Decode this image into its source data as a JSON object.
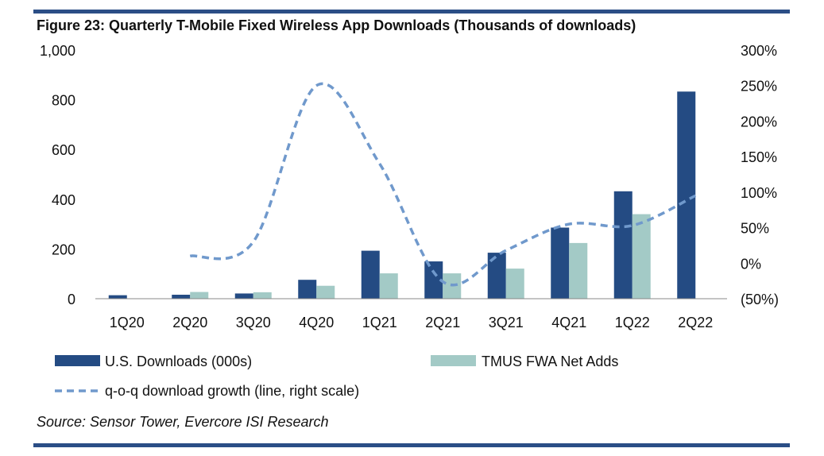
{
  "title": "Figure 23: Quarterly T-Mobile Fixed Wireless App Downloads (Thousands of downloads)",
  "source": "Source: Sensor Tower, Evercore ISI Research",
  "colors": {
    "rule": "#2b4e86",
    "downloads": "#244b83",
    "net_adds": "#a3cac6",
    "growth": "#7099cc",
    "axis": "#888888"
  },
  "chart_data": {
    "type": "bar",
    "title": "Figure 23: Quarterly T-Mobile Fixed Wireless App Downloads (Thousands of downloads)",
    "categories": [
      "1Q20",
      "2Q20",
      "3Q20",
      "4Q20",
      "1Q21",
      "2Q21",
      "3Q21",
      "4Q21",
      "1Q22",
      "2Q22"
    ],
    "series": [
      {
        "name": "U.S. Downloads (000s)",
        "type": "bar",
        "axis": "left",
        "values": [
          14,
          16,
          21,
          76,
          193,
          150,
          185,
          286,
          432,
          833
        ]
      },
      {
        "name": "TMUS FWA Net Adds",
        "type": "bar",
        "axis": "left",
        "values": [
          null,
          27,
          26,
          52,
          102,
          102,
          121,
          224,
          340,
          null
        ]
      },
      {
        "name": "q-o-q download growth (line, right scale)",
        "type": "line",
        "style": "dashed",
        "axis": "right",
        "values": [
          null,
          10,
          30,
          250,
          140,
          -26,
          18,
          55,
          53,
          95
        ]
      }
    ],
    "y_left": {
      "min": 0,
      "max": 1000,
      "ticks": [
        0,
        200,
        400,
        600,
        800,
        1000
      ],
      "tick_labels": [
        "0",
        "200",
        "400",
        "600",
        "800",
        "1,000"
      ]
    },
    "y_right": {
      "min": -50,
      "max": 300,
      "ticks": [
        -50,
        0,
        50,
        100,
        150,
        200,
        250,
        300
      ],
      "tick_labels": [
        "(50%)",
        "0%",
        "50%",
        "100%",
        "150%",
        "200%",
        "250%",
        "300%"
      ]
    },
    "grid": false,
    "legend": "bottom"
  }
}
